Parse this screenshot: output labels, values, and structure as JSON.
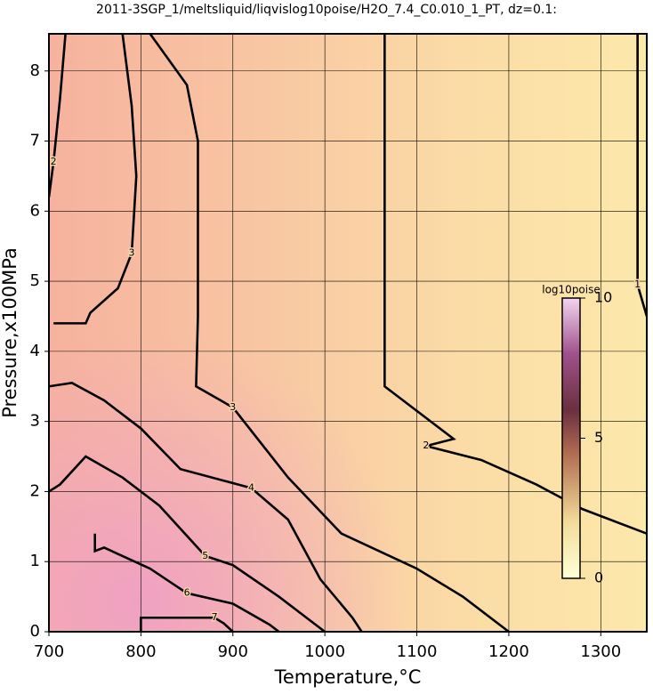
{
  "chart_data": {
    "type": "contour",
    "title": "2011-3SGP_1/meltsliquid/liqvislog10poise/H2O_7.4_C0.010_1_PT, dz=0.1:",
    "x_label": "Temperature,°C",
    "y_label": "Pressure,x100MPa",
    "xlim": [
      700,
      1350
    ],
    "ylim": [
      0,
      8.53
    ],
    "xticks": [
      700,
      800,
      900,
      1000,
      1100,
      1200,
      1300
    ],
    "yticks": [
      0,
      1,
      2,
      3,
      4,
      5,
      6,
      7,
      8
    ],
    "grid": true,
    "contours": [
      {
        "level": 1,
        "x": [
          1340,
          1340,
          1340,
          1350
        ],
        "y": [
          8.53,
          7.0,
          4.95,
          4.5
        ]
      },
      {
        "level": 2,
        "x": [
          1065,
          1065,
          1065,
          1140,
          1110,
          1170,
          1230,
          1280,
          1350
        ],
        "y": [
          8.53,
          5.1,
          3.5,
          2.75,
          2.65,
          2.45,
          2.1,
          1.75,
          1.4
        ]
      },
      {
        "level": 2,
        "x": [
          718,
          712,
          705,
          700
        ],
        "y": [
          8.53,
          7.6,
          6.7,
          6.2
        ]
      },
      {
        "level": 3,
        "x": [
          705,
          740,
          745,
          775,
          790,
          795,
          790,
          780
        ],
        "y": [
          4.4,
          4.4,
          4.55,
          4.9,
          5.4,
          6.5,
          7.5,
          8.53
        ]
      },
      {
        "level": 3,
        "x": [
          810,
          850,
          862,
          862,
          860,
          900,
          960,
          1018,
          1100,
          1150,
          1200
        ],
        "y": [
          8.53,
          7.8,
          7.0,
          4.5,
          3.5,
          3.2,
          2.2,
          1.4,
          0.9,
          0.5,
          0
        ]
      },
      {
        "level": 4,
        "x": [
          700,
          725,
          760,
          800,
          843,
          920,
          960,
          995,
          1030,
          1040
        ],
        "y": [
          3.5,
          3.55,
          3.3,
          2.9,
          2.32,
          2.05,
          1.6,
          0.75,
          0.2,
          0
        ]
      },
      {
        "level": 5,
        "x": [
          700,
          712,
          740,
          780,
          820,
          870,
          900,
          950,
          990,
          1000
        ],
        "y": [
          2.0,
          2.1,
          2.5,
          2.2,
          1.8,
          1.08,
          0.95,
          0.5,
          0.1,
          0
        ]
      },
      {
        "level": 6,
        "x": [
          750,
          750,
          760,
          810,
          850,
          900,
          940,
          950
        ],
        "y": [
          1.4,
          1.15,
          1.2,
          0.9,
          0.55,
          0.4,
          0.1,
          0
        ]
      },
      {
        "level": 7,
        "x": [
          800,
          800,
          855,
          880,
          890,
          900
        ],
        "y": [
          0,
          0.2,
          0.2,
          0.2,
          0.12,
          0
        ]
      }
    ],
    "colorbar": {
      "title": "log10poise",
      "range": [
        0,
        10
      ],
      "ticks": [
        0,
        5,
        10
      ]
    }
  }
}
